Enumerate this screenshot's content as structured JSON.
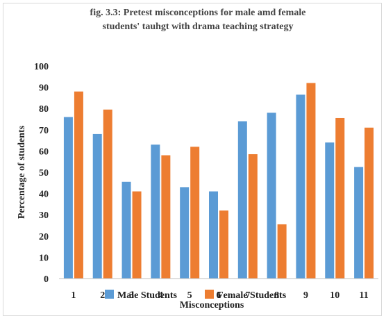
{
  "figure": {
    "title_line1": "fig. 3.3: Pretest  misconceptions for male amd female",
    "title_line2": "students' tauhgt  with drama teaching strategy"
  },
  "chart_data": {
    "type": "bar",
    "categories": [
      "1",
      "2",
      "3",
      "4",
      "5",
      "6",
      "7",
      "8",
      "9",
      "10",
      "11"
    ],
    "series": [
      {
        "name": "Male Students",
        "color": "#5b9bd5",
        "values": [
          76,
          68,
          45.5,
          63,
          43,
          41,
          74,
          78,
          86.5,
          64,
          52.5
        ]
      },
      {
        "name": "Female Students",
        "color": "#ed7d31",
        "values": [
          88,
          79.5,
          41,
          58,
          62,
          32,
          58.5,
          25.5,
          92,
          75.5,
          71
        ]
      }
    ],
    "xlabel": "Misconceptions",
    "ylabel": "Percentage of students",
    "ylim": [
      0,
      100
    ],
    "yticks": [
      0,
      10,
      20,
      30,
      40,
      50,
      60,
      70,
      80,
      90,
      100
    ],
    "grid": false,
    "legend": "bottom"
  }
}
